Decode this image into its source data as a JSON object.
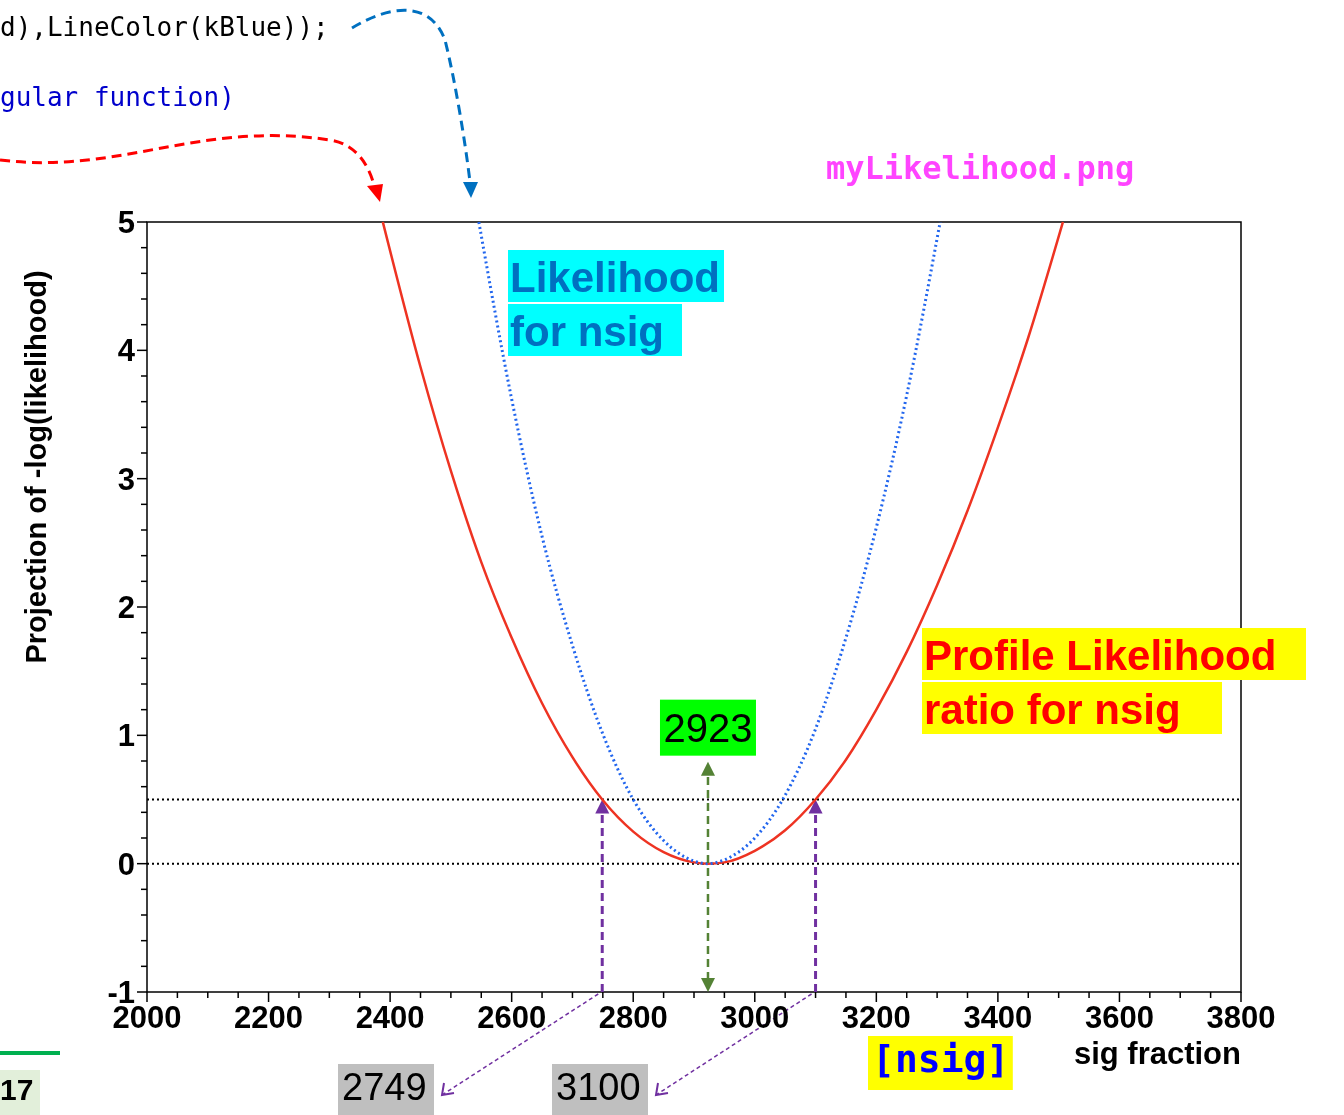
{
  "chart_data": {
    "type": "line",
    "xlabel": "sig fraction",
    "ylabel": "Projection of -log(likelihood)",
    "xlim": [
      2000,
      3800
    ],
    "ylim": [
      -1,
      5
    ],
    "xticks": [
      2000,
      {
        "value": 2050,
        "label": null
      },
      {
        "value": 2100,
        "label": null
      },
      {
        "value": 2150,
        "label": null
      },
      2200,
      {
        "value": 2250,
        "label": null
      },
      {
        "value": 2300,
        "label": null
      },
      {
        "value": 2350,
        "label": null
      },
      2400,
      {
        "value": 2450,
        "label": null
      },
      {
        "value": 2500,
        "label": null
      },
      {
        "value": 2550,
        "label": null
      },
      2600,
      {
        "value": 2650,
        "label": null
      },
      {
        "value": 2700,
        "label": null
      },
      {
        "value": 2750,
        "label": null
      },
      2800,
      {
        "value": 2850,
        "label": null
      },
      {
        "value": 2900,
        "label": null
      },
      {
        "value": 2950,
        "label": null
      },
      3000,
      {
        "value": 3050,
        "label": null
      },
      {
        "value": 3100,
        "label": null
      },
      {
        "value": 3150,
        "label": null
      },
      3200,
      {
        "value": 3250,
        "label": null
      },
      {
        "value": 3300,
        "label": null
      },
      {
        "value": 3350,
        "label": null
      },
      3400,
      {
        "value": 3450,
        "label": null
      },
      {
        "value": 3500,
        "label": null
      },
      {
        "value": 3550,
        "label": null
      },
      3600,
      {
        "value": 3650,
        "label": null
      },
      {
        "value": 3700,
        "label": null
      },
      {
        "value": 3750,
        "label": null
      },
      3800
    ],
    "yticks": [
      -1,
      {
        "value": -0.8,
        "label": null
      },
      {
        "value": -0.6,
        "label": null
      },
      {
        "value": -0.4,
        "label": null
      },
      {
        "value": -0.2,
        "label": null
      },
      0,
      {
        "value": 0.2,
        "label": null
      },
      {
        "value": 0.4,
        "label": null
      },
      {
        "value": 0.6,
        "label": null
      },
      {
        "value": 0.8,
        "label": null
      },
      1,
      {
        "value": 1.2,
        "label": null
      },
      {
        "value": 1.4,
        "label": null
      },
      {
        "value": 1.6,
        "label": null
      },
      {
        "value": 1.8,
        "label": null
      },
      2,
      {
        "value": 2.2,
        "label": null
      },
      {
        "value": 2.4,
        "label": null
      },
      {
        "value": 2.6,
        "label": null
      },
      {
        "value": 2.8,
        "label": null
      },
      3,
      {
        "value": 3.2,
        "label": null
      },
      {
        "value": 3.4,
        "label": null
      },
      {
        "value": 3.6,
        "label": null
      },
      {
        "value": 3.8,
        "label": null
      },
      4,
      {
        "value": 4.2,
        "label": null
      },
      {
        "value": 4.4,
        "label": null
      },
      {
        "value": 4.6,
        "label": null
      },
      {
        "value": 4.8,
        "label": null
      },
      5
    ],
    "series": [
      {
        "name": "Profile Likelihood ratio for nsig",
        "color": "#ee3322",
        "line_style": "solid",
        "x": [
          2388,
          2450,
          2500,
          2550,
          2600,
          2650,
          2700,
          2749,
          2800,
          2850,
          2900,
          2923,
          2950,
          3000,
          3050,
          3100,
          3150,
          3200,
          3250,
          3300,
          3350,
          3400,
          3450,
          3507
        ],
        "values": [
          5,
          3.87,
          3.06,
          2.35,
          1.76,
          1.25,
          0.83,
          0.5,
          0.25,
          0.09,
          0.01,
          0,
          0.01,
          0.1,
          0.26,
          0.5,
          0.81,
          1.2,
          1.65,
          2.17,
          2.75,
          3.4,
          4.1,
          5
        ]
      },
      {
        "name": "Likelihood for nsig",
        "color": "#2266ee",
        "line_style": "dotted",
        "x": [
          2546,
          2600,
          2650,
          2700,
          2750,
          2800,
          2850,
          2900,
          2923,
          2950,
          3000,
          3046,
          3100,
          3150,
          3200,
          3250,
          3305
        ],
        "values": [
          5,
          3.62,
          2.55,
          1.7,
          1.01,
          0.5,
          0.18,
          0.02,
          0,
          0.03,
          0.2,
          0.5,
          1.05,
          1.76,
          2.62,
          3.65,
          5
        ]
      }
    ],
    "ref_lines": [
      {
        "axis": "y",
        "value": 0,
        "color": "#000000",
        "line_style": "dotted"
      },
      {
        "axis": "y",
        "value": 0.5,
        "color": "#000000",
        "line_style": "dotted"
      },
      {
        "axis": "x",
        "value": 2749,
        "color": "#7030a0",
        "line_style": "dashed"
      },
      {
        "axis": "x",
        "value": 3100,
        "color": "#7030a0",
        "line_style": "dashed"
      }
    ],
    "annotations": [
      {
        "text": "2923",
        "x": 2923,
        "y": 0
      },
      "[nsig]",
      "myLikelihood.png",
      "2749",
      "3100",
      "d),LineColor(kBlue));",
      "gular function)",
      "17"
    ]
  }
}
